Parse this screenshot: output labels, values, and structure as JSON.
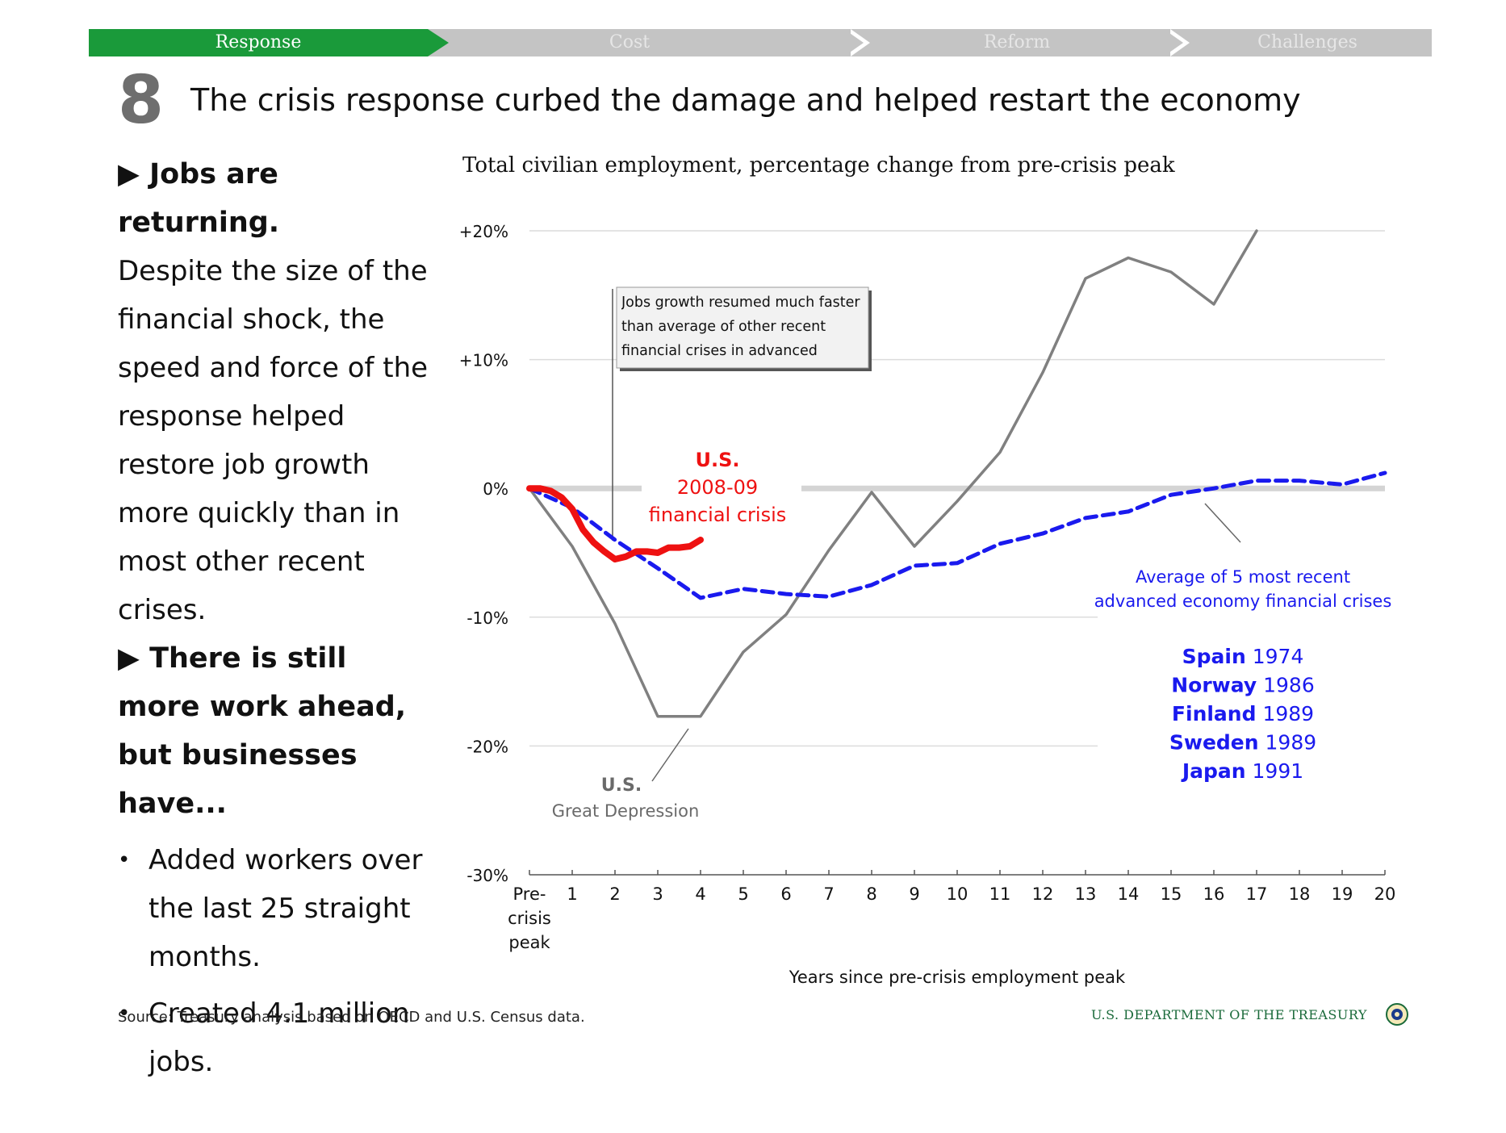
{
  "nav": {
    "steps": [
      "Response",
      "Cost",
      "Reform",
      "Challenges"
    ],
    "active_index": 0,
    "active_color": "#1a9a3a"
  },
  "slide": {
    "number": "8",
    "title": "The crisis response curbed the damage and helped restart the economy"
  },
  "left": {
    "heading1": "▶ Jobs are returning.",
    "para1": "Despite the size of the financial shock, the speed and force of the response helped restore job growth more quickly than in most other recent crises.",
    "heading2": "▶ There is still more work ahead, but businesses have...",
    "bullets": [
      "Added workers over the last 25 straight months.",
      "Created 4.1 million jobs."
    ]
  },
  "chart_data": {
    "type": "line",
    "title": "Total civilian employment, percentage change from pre-crisis peak",
    "xlabel": "Years since pre-crisis employment peak",
    "ylabel": "",
    "x_tick_labels": [
      "Pre-crisis peak",
      "1",
      "2",
      "3",
      "4",
      "5",
      "6",
      "7",
      "8",
      "9",
      "10",
      "11",
      "12",
      "13",
      "14",
      "15",
      "16",
      "17",
      "18",
      "19",
      "20"
    ],
    "xlim": [
      0,
      20
    ],
    "y_tick_labels": [
      "+20%",
      "+10%",
      "0%",
      "-10%",
      "-20%",
      "-30%"
    ],
    "y_tick_values": [
      20,
      10,
      0,
      -10,
      -20,
      -30
    ],
    "ylim": [
      -30,
      20
    ],
    "grid": true,
    "series": [
      {
        "name": "U.S. Great Depression",
        "color": "#808080",
        "style": "solid",
        "x": [
          0,
          1,
          2,
          3,
          4,
          5,
          6,
          7,
          8,
          9,
          10,
          11,
          12,
          13,
          14,
          15,
          16,
          17
        ],
        "y": [
          0,
          -4.5,
          -10.5,
          -17.7,
          -17.7,
          -12.7,
          -9.8,
          -4.8,
          -0.3,
          -4.5,
          -1.0,
          2.8,
          9.0,
          16.3,
          17.9,
          16.8,
          14.3,
          20.0
        ]
      },
      {
        "name": "Average of 5 most recent advanced economy financial crises",
        "color": "#1a1aee",
        "style": "dashed",
        "x": [
          0,
          1,
          2,
          3,
          4,
          5,
          6,
          7,
          8,
          9,
          10,
          11,
          12,
          13,
          14,
          15,
          16,
          17,
          18,
          19,
          20
        ],
        "y": [
          0,
          -1.5,
          -4.0,
          -6.2,
          -8.5,
          -7.8,
          -8.2,
          -8.4,
          -7.5,
          -6.0,
          -5.8,
          -4.3,
          -3.5,
          -2.3,
          -1.8,
          -0.5,
          0.0,
          0.6,
          0.6,
          0.3,
          1.2
        ]
      },
      {
        "name": "U.S. 2008-09 financial crisis",
        "color": "#ee1111",
        "style": "solid",
        "x": [
          0,
          0.25,
          0.5,
          0.75,
          1,
          1.25,
          1.5,
          1.75,
          2,
          2.25,
          2.5,
          2.75,
          3,
          3.25,
          3.5,
          3.75,
          4
        ],
        "y": [
          0,
          0,
          -0.2,
          -0.7,
          -1.6,
          -3.2,
          -4.2,
          -4.9,
          -5.5,
          -5.3,
          -4.9,
          -4.9,
          -5.0,
          -4.6,
          -4.6,
          -4.5,
          -4.0
        ]
      }
    ],
    "annotations": {
      "callout": "Jobs growth resumed much faster than average of other recent financial crises in advanced economies",
      "us_label_bold": "U.S.",
      "us_label_line2": "2008-09",
      "us_label_line3": "financial crisis",
      "gd_label_bold": "U.S.",
      "gd_label_line2": "Great Depression",
      "avg_label_line1": "Average of 5 most recent",
      "avg_label_line2": "advanced economy financial crises",
      "crises": [
        {
          "country": "Spain",
          "year": "1974"
        },
        {
          "country": "Norway",
          "year": "1986"
        },
        {
          "country": "Finland",
          "year": "1989"
        },
        {
          "country": "Sweden",
          "year": "1989"
        },
        {
          "country": "Japan",
          "year": "1991"
        }
      ]
    }
  },
  "source": "Source: Treasury analysis based on OECD and U.S. Census data.",
  "footer": "U.S. DEPARTMENT OF THE TREASURY"
}
